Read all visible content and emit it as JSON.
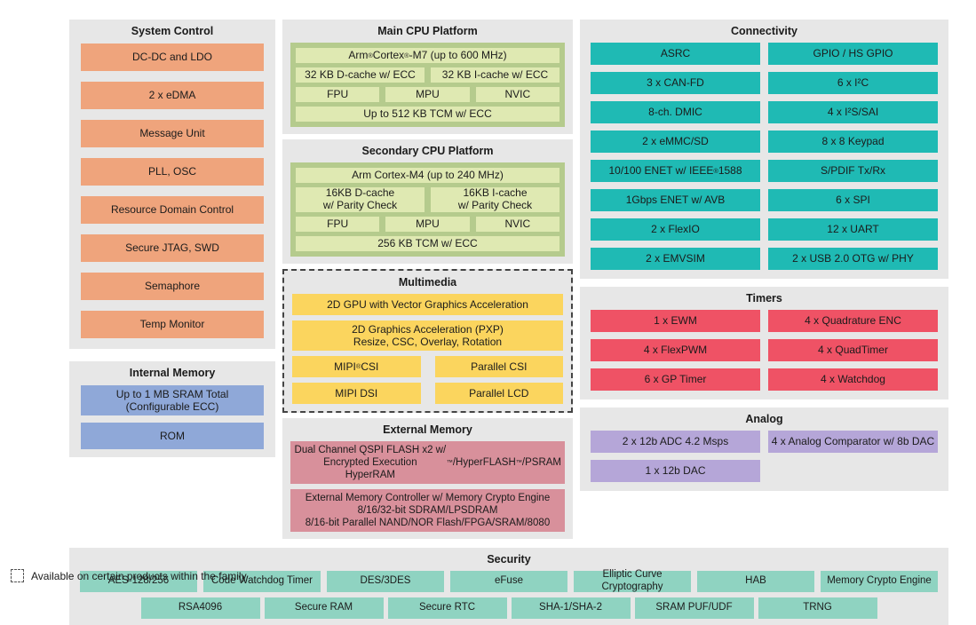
{
  "colors": {
    "panel_gray": "#e7e7e7",
    "system_control_orange": "#efa47c",
    "internal_memory_blue": "#8fa8d8",
    "cpu_container_green": "#b5cb8d",
    "cpu_cell_green": "#dfe9b2",
    "multimedia_yellow": "#fbd55e",
    "external_memory_rose": "#d8909b",
    "connectivity_teal": "#1fbab4",
    "timers_red": "#ef5265",
    "analog_purple": "#b5a6d8",
    "security_mint": "#8fd3c1"
  },
  "system_control": {
    "title": "System Control",
    "blocks": [
      "DC-DC and LDO",
      "2 x eDMA",
      "Message Unit",
      "PLL, OSC",
      "Resource Domain Control",
      "Secure JTAG, SWD",
      "Semaphore",
      "Temp Monitor"
    ]
  },
  "internal_memory": {
    "title": "Internal Memory",
    "blocks": [
      "Up to 1 MB SRAM Total\n(Configurable ECC)",
      "ROM"
    ]
  },
  "main_cpu": {
    "title": "Main CPU Platform",
    "core": "Arm® Cortex®-M7 (up to 600 MHz)",
    "dcache": "32 KB D-cache w/ ECC",
    "icache": "32 KB I-cache w/ ECC",
    "units": [
      "FPU",
      "MPU",
      "NVIC"
    ],
    "tcm": "Up to 512 KB TCM w/ ECC"
  },
  "secondary_cpu": {
    "title": "Secondary CPU Platform",
    "core": "Arm Cortex-M4 (up to 240 MHz)",
    "dcache": "16KB D-cache\nw/ Parity Check",
    "icache": "16KB I-cache\nw/ Parity Check",
    "units": [
      "FPU",
      "MPU",
      "NVIC"
    ],
    "tcm": "256 KB TCM w/ ECC"
  },
  "multimedia": {
    "title": "Multimedia",
    "wide_blocks": [
      "2D GPU with Vector Graphics Acceleration",
      "2D Graphics Acceleration (PXP)\nResize, CSC, Overlay, Rotation"
    ],
    "grid_blocks": [
      "MIPI® CSI",
      "Parallel CSI",
      "MIPI DSI",
      "Parallel LCD"
    ]
  },
  "external_memory": {
    "title": "External Memory",
    "blocks": [
      "Dual Channel QSPI FLASH x2 w/ Encrypted Execution\nHyperRAM™/HyperFLASH™/PSRAM",
      "External Memory Controller w/ Memory Crypto Engine\n8/16/32-bit SDRAM/LPSDRAM\n8/16-bit Parallel NAND/NOR Flash/FPGA/SRAM/8080"
    ]
  },
  "connectivity": {
    "title": "Connectivity",
    "left": [
      "ASRC",
      "3 x CAN-FD",
      "8-ch. DMIC",
      "2 x eMMC/SD",
      "10/100 ENET w/ IEEE® 1588",
      "1Gbps ENET w/ AVB",
      "2 x FlexIO",
      "2 x EMVSIM"
    ],
    "right": [
      "GPIO / HS GPIO",
      "6 x I²C",
      "4 x I²S/SAI",
      "8 x 8 Keypad",
      "S/PDIF Tx/Rx",
      "6 x SPI",
      "12 x UART",
      "2 x USB 2.0 OTG w/ PHY"
    ]
  },
  "timers": {
    "title": "Timers",
    "left": [
      "1 x EWM",
      "4 x FlexPWM",
      "6 x GP Timer"
    ],
    "right": [
      "4 x Quadrature ENC",
      "4 x QuadTimer",
      "4 x Watchdog"
    ]
  },
  "analog": {
    "title": "Analog",
    "row1": [
      "2 x 12b ADC 4.2 Msps",
      "4 x Analog Comparator w/ 8b DAC"
    ],
    "row2": [
      "1 x 12b DAC"
    ]
  },
  "security": {
    "title": "Security",
    "row1": [
      "AES-128/256",
      "Code Watchdog Timer",
      "DES/3DES",
      "eFuse",
      "Elliptic Curve Cryptography",
      "HAB",
      "Memory Crypto Engine"
    ],
    "row2": [
      "RSA4096",
      "Secure RAM",
      "Secure RTC",
      "SHA-1/SHA-2",
      "SRAM PUF/UDF",
      "TRNG"
    ]
  },
  "legend": {
    "label": "Available on certain products within the family"
  }
}
